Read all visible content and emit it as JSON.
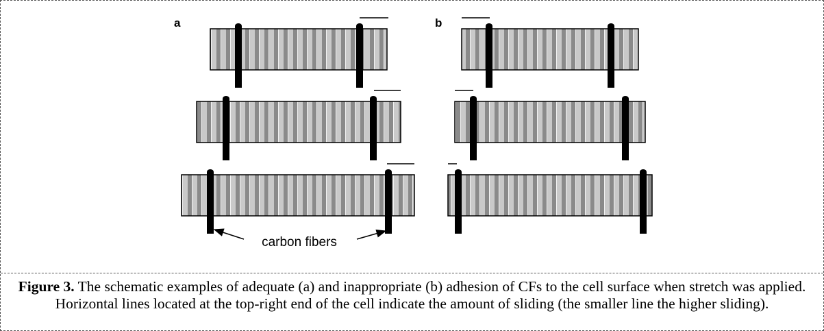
{
  "figure": {
    "panels": [
      "a",
      "b"
    ],
    "annotation": "carbon fibers"
  },
  "caption": {
    "label": "Figure 3.",
    "text": "The schematic examples of adequate (a) and inappropriate (b) adhesion of CFs to the cell surface when stretch was applied. Horizontal lines located at the top-right end of the cell indicate the amount of sliding (the smaller line the higher sliding)."
  }
}
